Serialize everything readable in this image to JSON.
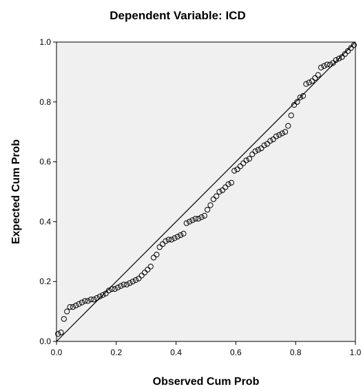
{
  "chart_data": {
    "type": "scatter",
    "title": "Dependent Variable: ICD",
    "xlabel": "Observed Cum Prob",
    "ylabel": "Expected Cum Prob",
    "xlim": [
      0,
      1
    ],
    "ylim": [
      0,
      1
    ],
    "xticks": [
      "0.0",
      "0.2",
      "0.4",
      "0.6",
      "0.8",
      "1.0"
    ],
    "yticks": [
      "0.0",
      "0.2",
      "0.4",
      "0.6",
      "0.8",
      "1.0"
    ],
    "grid": false,
    "reference_line": [
      [
        0,
        0
      ],
      [
        1,
        1
      ]
    ],
    "colors": {
      "plot_bg": "#f0f0f0",
      "marker": "#000000",
      "line": "#000000"
    },
    "points": [
      [
        0.005,
        0.025
      ],
      [
        0.015,
        0.03
      ],
      [
        0.025,
        0.075
      ],
      [
        0.035,
        0.1
      ],
      [
        0.045,
        0.115
      ],
      [
        0.055,
        0.115
      ],
      [
        0.065,
        0.12
      ],
      [
        0.075,
        0.125
      ],
      [
        0.085,
        0.13
      ],
      [
        0.095,
        0.135
      ],
      [
        0.105,
        0.135
      ],
      [
        0.115,
        0.14
      ],
      [
        0.125,
        0.14
      ],
      [
        0.135,
        0.145
      ],
      [
        0.145,
        0.15
      ],
      [
        0.155,
        0.155
      ],
      [
        0.165,
        0.16
      ],
      [
        0.175,
        0.17
      ],
      [
        0.185,
        0.175
      ],
      [
        0.195,
        0.175
      ],
      [
        0.205,
        0.18
      ],
      [
        0.215,
        0.185
      ],
      [
        0.225,
        0.19
      ],
      [
        0.235,
        0.19
      ],
      [
        0.245,
        0.195
      ],
      [
        0.255,
        0.2
      ],
      [
        0.265,
        0.205
      ],
      [
        0.275,
        0.21
      ],
      [
        0.285,
        0.22
      ],
      [
        0.295,
        0.23
      ],
      [
        0.305,
        0.24
      ],
      [
        0.315,
        0.25
      ],
      [
        0.325,
        0.28
      ],
      [
        0.335,
        0.29
      ],
      [
        0.345,
        0.315
      ],
      [
        0.355,
        0.325
      ],
      [
        0.365,
        0.335
      ],
      [
        0.375,
        0.34
      ],
      [
        0.385,
        0.34
      ],
      [
        0.395,
        0.345
      ],
      [
        0.405,
        0.35
      ],
      [
        0.415,
        0.355
      ],
      [
        0.425,
        0.36
      ],
      [
        0.435,
        0.395
      ],
      [
        0.445,
        0.4
      ],
      [
        0.455,
        0.405
      ],
      [
        0.465,
        0.41
      ],
      [
        0.475,
        0.41
      ],
      [
        0.485,
        0.415
      ],
      [
        0.495,
        0.42
      ],
      [
        0.505,
        0.44
      ],
      [
        0.515,
        0.455
      ],
      [
        0.525,
        0.475
      ],
      [
        0.535,
        0.485
      ],
      [
        0.545,
        0.5
      ],
      [
        0.555,
        0.505
      ],
      [
        0.565,
        0.515
      ],
      [
        0.575,
        0.525
      ],
      [
        0.585,
        0.53
      ],
      [
        0.595,
        0.57
      ],
      [
        0.605,
        0.575
      ],
      [
        0.615,
        0.585
      ],
      [
        0.625,
        0.595
      ],
      [
        0.635,
        0.605
      ],
      [
        0.645,
        0.61
      ],
      [
        0.655,
        0.625
      ],
      [
        0.665,
        0.635
      ],
      [
        0.675,
        0.64
      ],
      [
        0.685,
        0.645
      ],
      [
        0.695,
        0.655
      ],
      [
        0.705,
        0.66
      ],
      [
        0.715,
        0.67
      ],
      [
        0.725,
        0.675
      ],
      [
        0.735,
        0.685
      ],
      [
        0.745,
        0.69
      ],
      [
        0.755,
        0.695
      ],
      [
        0.765,
        0.7
      ],
      [
        0.775,
        0.72
      ],
      [
        0.785,
        0.755
      ],
      [
        0.795,
        0.79
      ],
      [
        0.805,
        0.8
      ],
      [
        0.815,
        0.815
      ],
      [
        0.825,
        0.82
      ],
      [
        0.835,
        0.86
      ],
      [
        0.845,
        0.865
      ],
      [
        0.855,
        0.87
      ],
      [
        0.865,
        0.88
      ],
      [
        0.875,
        0.89
      ],
      [
        0.885,
        0.915
      ],
      [
        0.895,
        0.92
      ],
      [
        0.905,
        0.925
      ],
      [
        0.915,
        0.925
      ],
      [
        0.925,
        0.93
      ],
      [
        0.935,
        0.94
      ],
      [
        0.945,
        0.945
      ],
      [
        0.955,
        0.95
      ],
      [
        0.965,
        0.96
      ],
      [
        0.975,
        0.97
      ],
      [
        0.985,
        0.98
      ],
      [
        0.995,
        0.99
      ]
    ]
  }
}
